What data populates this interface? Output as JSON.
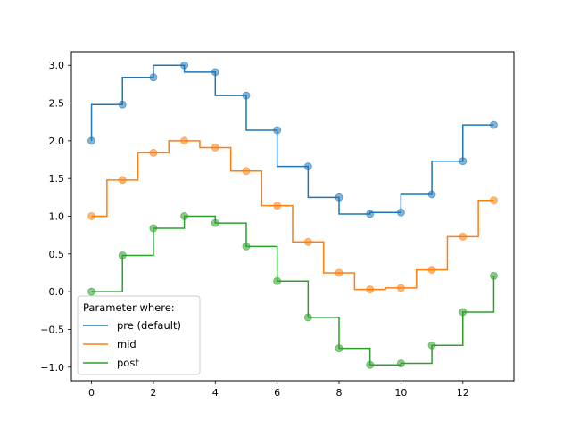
{
  "chart_data": {
    "type": "line",
    "title": "",
    "xlabel": "",
    "ylabel": "",
    "xlim": [
      -0.65,
      13.65
    ],
    "ylim": [
      -1.18,
      3.18
    ],
    "x_ticks": [
      0,
      2,
      4,
      6,
      8,
      10,
      12
    ],
    "y_ticks": [
      -1.0,
      -0.5,
      0.0,
      0.5,
      1.0,
      1.5,
      2.0,
      2.5,
      3.0
    ],
    "x_tick_labels": [
      "0",
      "2",
      "4",
      "6",
      "8",
      "10",
      "12"
    ],
    "y_tick_labels": [
      "−1.0",
      "−0.5",
      "0.0",
      "0.5",
      "1.0",
      "1.5",
      "2.0",
      "2.5",
      "3.0"
    ],
    "grid": false,
    "legend": {
      "title": "Parameter where:",
      "placement": "lower-left"
    },
    "x": [
      0,
      1,
      2,
      3,
      4,
      5,
      6,
      7,
      8,
      9,
      10,
      11,
      12,
      13
    ],
    "series": [
      {
        "name": "pre (default)",
        "step": "pre",
        "color": "#1f77b4",
        "values": [
          2.0,
          2.48,
          2.84,
          3.0,
          2.91,
          2.6,
          2.14,
          1.66,
          1.25,
          1.03,
          1.05,
          1.29,
          1.73,
          2.21
        ]
      },
      {
        "name": "mid",
        "step": "mid",
        "color": "#ff7f0e",
        "values": [
          1.0,
          1.48,
          1.84,
          2.0,
          1.91,
          1.6,
          1.14,
          0.66,
          0.25,
          0.03,
          0.05,
          0.29,
          0.73,
          1.21
        ]
      },
      {
        "name": "post",
        "step": "post",
        "color": "#2ca02c",
        "values": [
          0.0,
          0.48,
          0.84,
          1.0,
          0.91,
          0.6,
          0.14,
          -0.34,
          -0.75,
          -0.97,
          -0.95,
          -0.71,
          -0.27,
          0.21
        ]
      }
    ]
  }
}
